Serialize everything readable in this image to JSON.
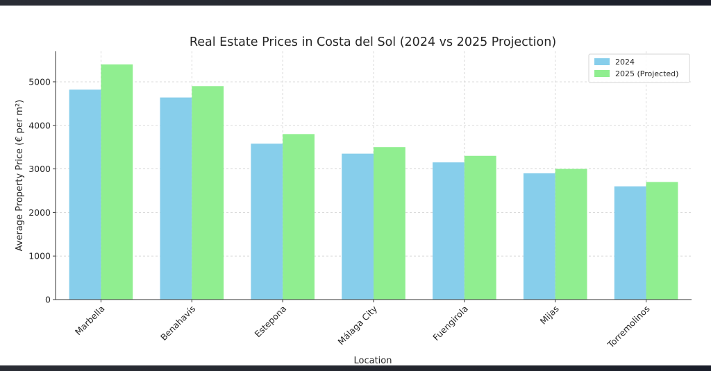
{
  "chart_data": {
    "type": "bar",
    "title": "Real Estate Prices in Costa del Sol (2024 vs 2025 Projection)",
    "xlabel": "Location",
    "ylabel": "Average Property Price (€ per m²)",
    "categories": [
      "Marbella",
      "Benahavís",
      "Estepona",
      "Málaga City",
      "Fuengirola",
      "Mijas",
      "Torremolinos"
    ],
    "series": [
      {
        "name": "2024",
        "color": "#87ceeb",
        "values": [
          4820,
          4640,
          3580,
          3350,
          3150,
          2900,
          2600
        ]
      },
      {
        "name": "2025 (Projected)",
        "color": "#90ee90",
        "values": [
          5400,
          4900,
          3800,
          3500,
          3300,
          3000,
          2700
        ]
      }
    ],
    "ylim": [
      0,
      5700
    ],
    "yticks": [
      0,
      1000,
      2000,
      3000,
      4000,
      5000
    ],
    "grid": true,
    "legend_position": "top-right"
  }
}
